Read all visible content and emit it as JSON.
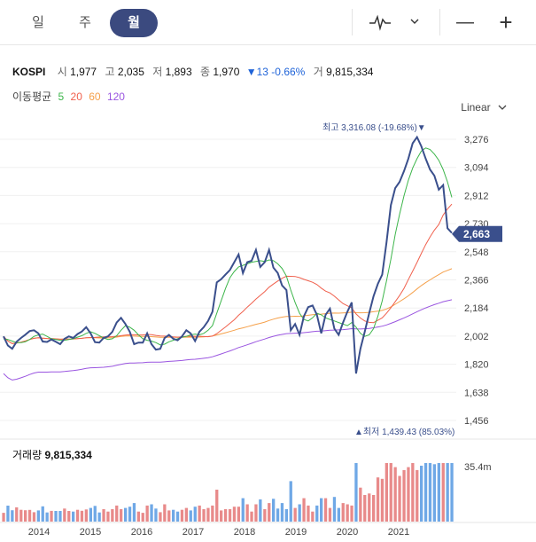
{
  "tabs": [
    {
      "label": "일"
    },
    {
      "label": "주"
    },
    {
      "label": "월"
    }
  ],
  "toolbar": {
    "chart_type_icon": "line-chart-icon",
    "dropdown_icon": "chevron-down-icon",
    "zoom_out": "—",
    "zoom_in": "+"
  },
  "quote": {
    "symbol": "KOSPI",
    "open_label": "시",
    "open": "1,977",
    "high_label": "고",
    "high": "2,035",
    "low_label": "저",
    "low": "1,893",
    "close_label": "종",
    "close": "1,970",
    "change": "▼13 -0.66%",
    "volume_label": "거",
    "volume": "9,815,334"
  },
  "moving_average": {
    "label": "이동평균",
    "periods": [
      "5",
      "20",
      "60",
      "120"
    ],
    "colors": [
      "#3cb54a",
      "#f0604d",
      "#f5a04a",
      "#9a55e0"
    ]
  },
  "scale_mode": {
    "label": "Linear",
    "icon": "chevron-down-icon"
  },
  "volume_panel": {
    "label": "거래량",
    "value": "9,815,334",
    "axis_label": "35.4m"
  },
  "colors": {
    "price_line": "#3a4f8c",
    "up": "#e88a8a",
    "down": "#6fa8e6",
    "badge": "#3a4f8c"
  },
  "chart_data": {
    "type": "line",
    "title": "KOSPI",
    "x_tick_labels": [
      "2014",
      "2015",
      "2016",
      "2017",
      "2018",
      "2019",
      "2020",
      "2021"
    ],
    "y_tick_labels": [
      "3,276",
      "3,094",
      "2,912",
      "2,730",
      "2,548",
      "2,366",
      "2,184",
      "2,002",
      "1,820",
      "1,638",
      "1,456"
    ],
    "ylim": [
      1456,
      3276
    ],
    "current_label": "2,663",
    "high_annotation": "최고 3,316.08 (-19.68%)▼",
    "low_annotation": "▲최저 1,439.43 (85.03%)",
    "series": [
      {
        "name": "KOSPI",
        "values": [
          2000,
          1941,
          1920,
          1965,
          1990,
          2011,
          2035,
          2040,
          2020,
          1967,
          1964,
          1980,
          1965,
          1950,
          1985,
          2000,
          1990,
          2015,
          2032,
          2060,
          2020,
          1963,
          1960,
          1990,
          2000,
          2030,
          2090,
          2120,
          2080,
          2030,
          1950,
          1960,
          1960,
          2020,
          1950,
          1915,
          1920,
          1990,
          2010,
          1985,
          1975,
          2000,
          2040,
          2020,
          1970,
          2030,
          2060,
          2100,
          2160,
          2350,
          2370,
          2400,
          2430,
          2480,
          2530,
          2410,
          2480,
          2490,
          2560,
          2450,
          2480,
          2560,
          2445,
          2410,
          2330,
          2300,
          2040,
          2080,
          2010,
          2130,
          2190,
          2200,
          2140,
          2020,
          2140,
          2180,
          2050,
          2010,
          2090,
          2160,
          2220,
          1760,
          1920,
          2030,
          2150,
          2260,
          2340,
          2400,
          2610,
          2850,
          2960,
          3000,
          3070,
          3150,
          3250,
          3290,
          3230,
          3150,
          3080,
          3040,
          2950,
          2980,
          2700,
          2670
        ]
      },
      {
        "name": "5",
        "values": [
          1985,
          1980,
          1970,
          1960,
          1960,
          1965,
          1980,
          2000,
          2010,
          2015,
          2000,
          1985,
          1980,
          1975,
          1975,
          1980,
          1985,
          1995,
          2005,
          2020,
          2030,
          2020,
          2005,
          1990,
          1980,
          1985,
          2005,
          2040,
          2070,
          2060,
          2040,
          2010,
          1985,
          1975,
          1970,
          1960,
          1945,
          1950,
          1965,
          1975,
          1985,
          1995,
          2000,
          2010,
          2015,
          2010,
          2020,
          2040,
          2070,
          2150,
          2230,
          2310,
          2380,
          2420,
          2450,
          2460,
          2470,
          2480,
          2485,
          2490,
          2485,
          2495,
          2490,
          2470,
          2440,
          2390,
          2300,
          2220,
          2150,
          2110,
          2100,
          2120,
          2150,
          2140,
          2120,
          2110,
          2100,
          2090,
          2080,
          2070,
          2090,
          2060,
          2020,
          2000,
          2010,
          2050,
          2130,
          2230,
          2360,
          2500,
          2660,
          2790,
          2910,
          3010,
          3090,
          3150,
          3200,
          3220,
          3210,
          3180,
          3140,
          3080,
          3000,
          2900
        ]
      }
    ]
  }
}
